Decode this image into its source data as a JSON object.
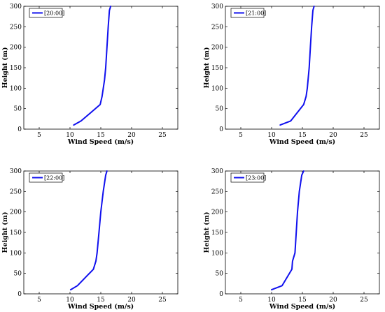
{
  "colors": {
    "series": "#1010ee",
    "axis": "#000000",
    "background": "#ffffff"
  },
  "chart_data": [
    {
      "type": "line",
      "xlabel": "Wind Speed (m/s)",
      "ylabel": "Height (m)",
      "xlim": [
        2.5,
        27.5
      ],
      "ylim": [
        0,
        300
      ],
      "xticks": [
        5,
        10,
        15,
        20,
        25
      ],
      "yticks": [
        0,
        50,
        100,
        150,
        200,
        250,
        300
      ],
      "legend_placement": "top-left",
      "series": [
        {
          "name": "[20:00]",
          "x": [
            10.6,
            11.8,
            14.9,
            15.2,
            15.6,
            15.8,
            16.0,
            16.2,
            16.4,
            16.6
          ],
          "y": [
            10,
            20,
            60,
            80,
            120,
            150,
            200,
            250,
            290,
            300
          ]
        }
      ]
    },
    {
      "type": "line",
      "xlabel": "Wind Speed (m/s)",
      "ylabel": "Height (m)",
      "xlim": [
        2.5,
        27.5
      ],
      "ylim": [
        0,
        300
      ],
      "xticks": [
        5,
        10,
        15,
        20,
        25
      ],
      "yticks": [
        0,
        50,
        100,
        150,
        200,
        250,
        300
      ],
      "legend_placement": "top-left",
      "series": [
        {
          "name": "[21:00]",
          "x": [
            11.4,
            13.1,
            15.2,
            15.6,
            15.8,
            16.1,
            16.3,
            16.5,
            16.7,
            16.9
          ],
          "y": [
            10,
            20,
            60,
            80,
            100,
            150,
            200,
            250,
            290,
            300
          ]
        }
      ]
    },
    {
      "type": "line",
      "xlabel": "Wind Speed (m/s)",
      "ylabel": "Height (m)",
      "xlim": [
        2.5,
        27.5
      ],
      "ylim": [
        0,
        300
      ],
      "xticks": [
        5,
        10,
        15,
        20,
        25
      ],
      "yticks": [
        0,
        50,
        100,
        150,
        200,
        250,
        300
      ],
      "legend_placement": "top-left",
      "series": [
        {
          "name": "[22:00]",
          "x": [
            10.1,
            11.2,
            13.8,
            14.2,
            14.4,
            14.7,
            15.0,
            15.4,
            15.8,
            16.0
          ],
          "y": [
            10,
            20,
            60,
            80,
            100,
            150,
            200,
            250,
            290,
            300
          ]
        }
      ]
    },
    {
      "type": "line",
      "xlabel": "Wind Speed (m/s)",
      "ylabel": "Height (m)",
      "xlim": [
        2.5,
        27.5
      ],
      "ylim": [
        0,
        300
      ],
      "xticks": [
        5,
        10,
        15,
        20,
        25
      ],
      "yticks": [
        0,
        50,
        100,
        150,
        200,
        250,
        300
      ],
      "legend_placement": "top-left",
      "series": [
        {
          "name": "[23:00]",
          "x": [
            10.0,
            11.7,
            13.3,
            13.4,
            13.8,
            14.0,
            14.2,
            14.5,
            14.9,
            15.2
          ],
          "y": [
            10,
            20,
            60,
            80,
            100,
            150,
            200,
            250,
            290,
            300
          ]
        }
      ]
    }
  ]
}
